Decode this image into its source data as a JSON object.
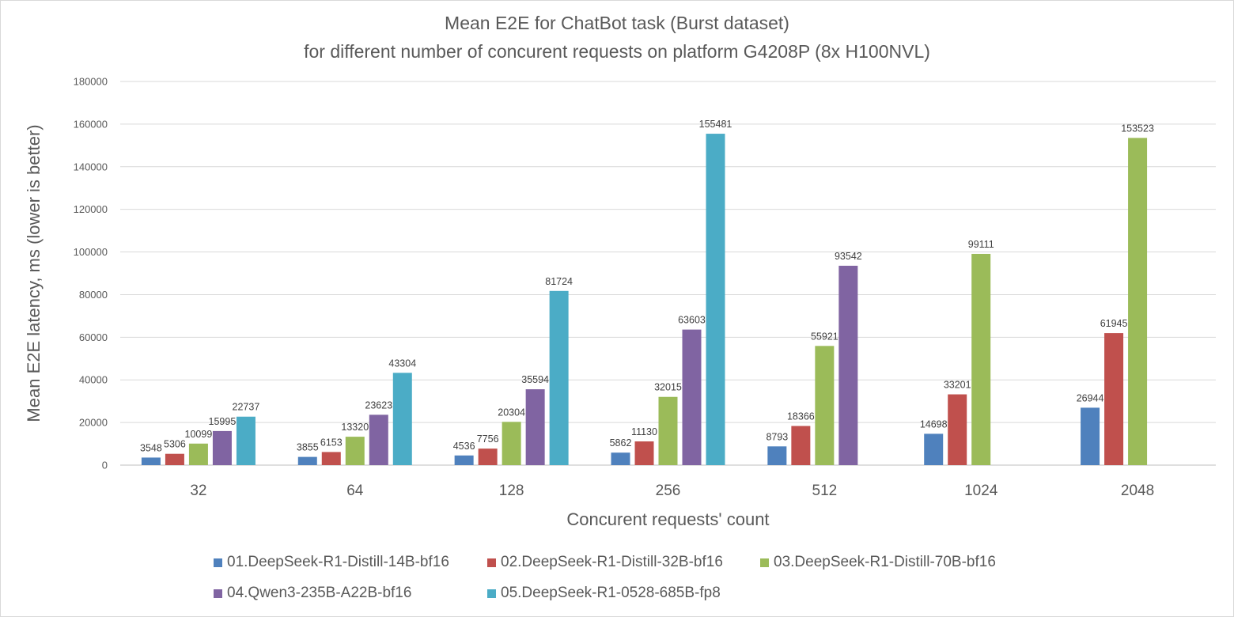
{
  "chart_data": {
    "type": "bar",
    "title_line1": "Mean E2E for ChatBot task (Burst dataset)",
    "title_line2": "for different number of concurent requests on platform G4208P (8x H100NVL)",
    "xlabel": "Concurent requests' count",
    "ylabel": "Mean E2E latency, ms (lower is better)",
    "ylim": [
      0,
      180000
    ],
    "yticks": [
      0,
      20000,
      40000,
      60000,
      80000,
      100000,
      120000,
      140000,
      160000,
      180000
    ],
    "grid": true,
    "legend_position": "bottom",
    "categories": [
      "32",
      "64",
      "128",
      "256",
      "512",
      "1024",
      "2048"
    ],
    "series": [
      {
        "name": "01.DeepSeek-R1-Distill-14B-bf16",
        "color": "#4f81bd",
        "values": [
          3548,
          3855,
          4536,
          5862,
          8793,
          14698,
          26944
        ]
      },
      {
        "name": "02.DeepSeek-R1-Distill-32B-bf16",
        "color": "#c0504d",
        "values": [
          5306,
          6153,
          7756,
          11130,
          18366,
          33201,
          61945
        ]
      },
      {
        "name": "03.DeepSeek-R1-Distill-70B-bf16",
        "color": "#9bbb59",
        "values": [
          10099,
          13320,
          20304,
          32015,
          55921,
          99111,
          153523
        ]
      },
      {
        "name": "04.Qwen3-235B-A22B-bf16",
        "color": "#8064a2",
        "values": [
          15995,
          23623,
          35594,
          63603,
          93542,
          null,
          null
        ]
      },
      {
        "name": "05.DeepSeek-R1-0528-685B-fp8",
        "color": "#4bacc6",
        "values": [
          22737,
          43304,
          81724,
          155481,
          null,
          null,
          null
        ]
      }
    ]
  }
}
